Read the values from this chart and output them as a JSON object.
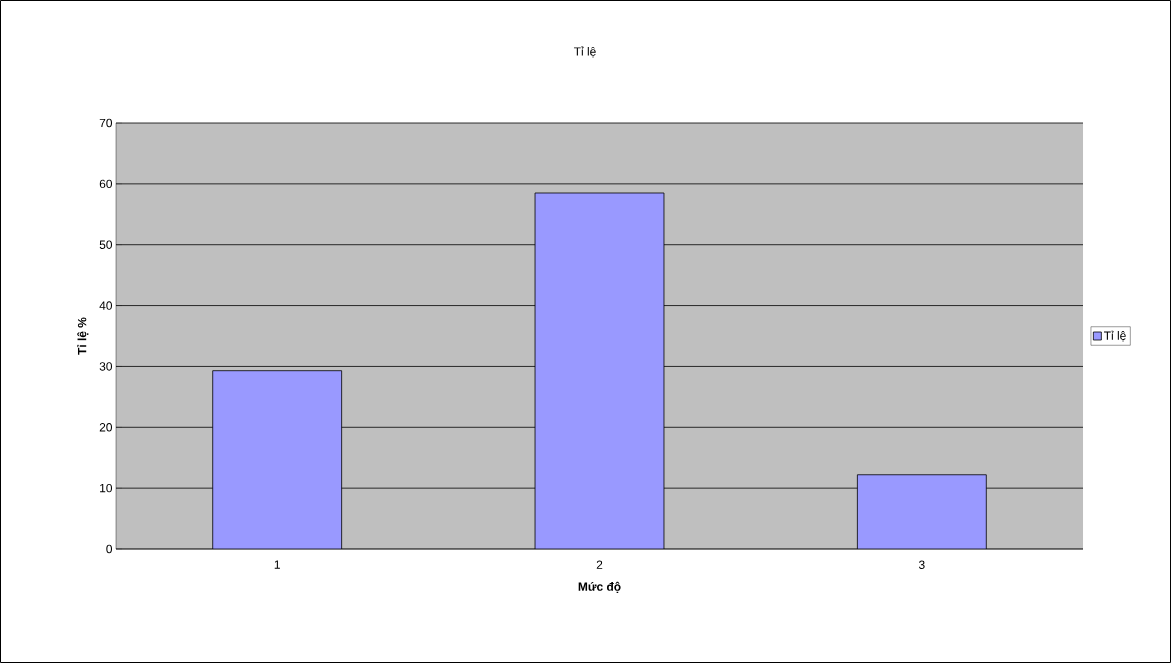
{
  "chart_data": {
    "type": "bar",
    "title": "Tỉ lệ",
    "xlabel": "Mức độ",
    "ylabel": "Tỉ lệ %",
    "categories": [
      "1",
      "2",
      "3"
    ],
    "series": [
      {
        "name": "Tỉ lệ",
        "color": "#9999ff",
        "values": [
          29.3,
          58.5,
          12.2
        ]
      }
    ],
    "ylim": [
      0,
      70
    ],
    "yticks": [
      0,
      10,
      20,
      30,
      40,
      50,
      60,
      70
    ],
    "grid": "y",
    "legend": "right"
  }
}
